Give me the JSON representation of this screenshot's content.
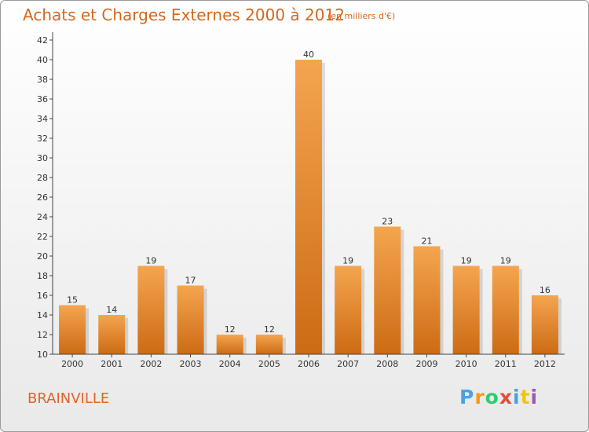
{
  "header": {
    "title": "Achats et Charges Externes 2000 à 2012",
    "subtitle": "(en milliers d'€)"
  },
  "footer": {
    "commune": "BRAINVILLE",
    "logo": {
      "letters": [
        "P",
        "r",
        "o",
        "x",
        "i",
        "t",
        "i"
      ],
      "colors": [
        "#4aa3df",
        "#f39c12",
        "#2ecc71",
        "#e74c3c",
        "#4aa3df",
        "#f1c40f",
        "#9b59b6"
      ]
    }
  },
  "chart_data": {
    "type": "bar",
    "title": "Achats et Charges Externes 2000 à 2012",
    "subtitle": "(en milliers d'€)",
    "xlabel": "",
    "ylabel": "",
    "categories": [
      "2000",
      "2001",
      "2002",
      "2003",
      "2004",
      "2005",
      "2006",
      "2007",
      "2008",
      "2009",
      "2010",
      "2011",
      "2012"
    ],
    "values": [
      15,
      14,
      19,
      17,
      12,
      12,
      40,
      19,
      23,
      21,
      19,
      19,
      16
    ],
    "ylim": [
      10,
      42
    ],
    "yticks": [
      10,
      12,
      14,
      16,
      18,
      20,
      22,
      24,
      26,
      28,
      30,
      32,
      34,
      36,
      38,
      40,
      42
    ],
    "grid": false,
    "legend": "none",
    "colors": {
      "bar_top": "#f5a54f",
      "bar_bottom": "#cc6b14",
      "axis": "#444444",
      "text": "#333333"
    }
  }
}
